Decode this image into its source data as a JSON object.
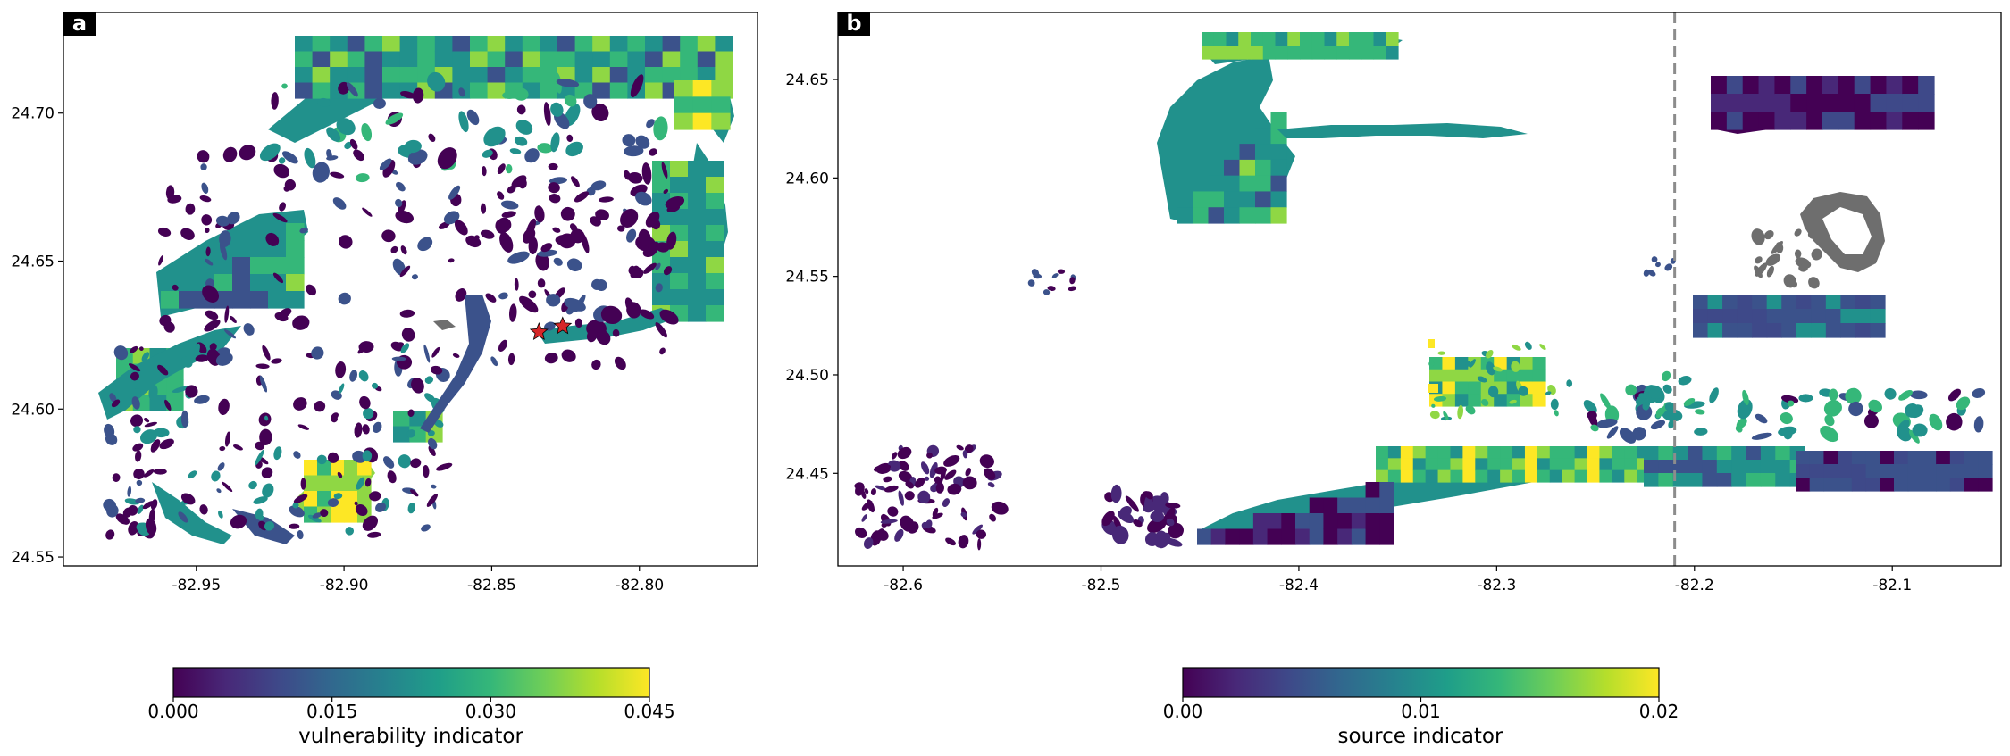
{
  "colors": {
    "dark": "#440154",
    "blue": "#3b528b",
    "teal": "#21918c",
    "green": "#35b779",
    "lime": "#8fd744",
    "yellow": "#fde725",
    "grey": "#6e6e6e",
    "star": "#d62728",
    "dashed_line": "#8c8c8c"
  },
  "colormap": [
    "#440154",
    "#482878",
    "#3e4989",
    "#31688e",
    "#26828e",
    "#1f9e89",
    "#35b779",
    "#6ece58",
    "#b5de2b",
    "#fde725"
  ],
  "map_data": [
    {
      "panel": "a",
      "xlim": [
        -82.995,
        -82.76
      ],
      "ylim": [
        24.547,
        24.734
      ],
      "xticks": [
        "-82.95",
        "-82.90",
        "-82.85",
        "-82.80"
      ],
      "yticks": [
        "24.55",
        "24.60",
        "24.65",
        "24.70"
      ],
      "markers": [
        {
          "type": "star",
          "lon": -82.834,
          "lat": 24.626
        },
        {
          "type": "star",
          "lon": -82.826,
          "lat": 24.628
        }
      ],
      "colorbar": {
        "label": "vulnerability indicator",
        "range": [
          0.0,
          0.045
        ],
        "ticks": [
          "0.000",
          "0.015",
          "0.030",
          "0.045"
        ]
      }
    },
    {
      "panel": "b",
      "xlim": [
        -82.633,
        -82.045
      ],
      "ylim": [
        24.403,
        24.684
      ],
      "xticks": [
        "-82.6",
        "-82.5",
        "-82.4",
        "-82.3",
        "-82.2",
        "-82.1"
      ],
      "yticks": [
        "24.45",
        "24.50",
        "24.55",
        "24.60",
        "24.65"
      ],
      "vline_lon": -82.21,
      "colorbar": {
        "label": "source indicator",
        "range": [
          0.0,
          0.02
        ],
        "ticks": [
          "0.00",
          "0.01",
          "0.02"
        ]
      }
    }
  ]
}
